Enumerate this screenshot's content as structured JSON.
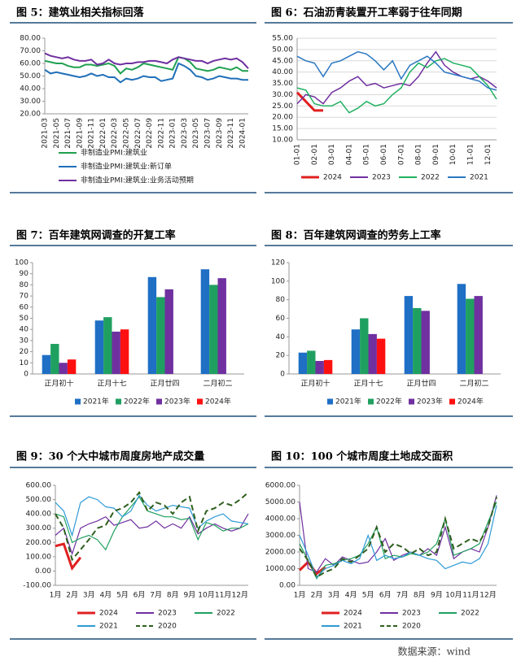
{
  "chart_data": [
    {
      "type": "line",
      "title": "图 5：建筑业相关指标回落",
      "categories": [
        "2021-03",
        null,
        "2021-05",
        null,
        "2021-07",
        null,
        "2021-09",
        null,
        "2021-11",
        null,
        "2022-01",
        null,
        "2022-03",
        null,
        "2022-05",
        null,
        "2022-07",
        null,
        "2022-09",
        null,
        "2022-11",
        null,
        "2023-01",
        null,
        "2023-03",
        null,
        "2023-05",
        null,
        "2023-07",
        null,
        "2023-09",
        null,
        "2023-11",
        null,
        "2024-01",
        null
      ],
      "ylim": [
        20,
        80
      ],
      "yticks": [
        {
          "value": 20,
          "label": "20.00"
        },
        {
          "value": 30,
          "label": "30.00"
        },
        {
          "value": 40,
          "label": "40.00"
        },
        {
          "value": 50,
          "label": "50.00"
        },
        {
          "value": 60,
          "label": "60.00"
        },
        {
          "value": 70,
          "label": "70.00"
        },
        {
          "value": 80,
          "label": "80.00"
        }
      ],
      "grid": false,
      "series": [
        {
          "name": "非制造业PMI:建筑业",
          "color": "#20a050",
          "line_width": 2,
          "values": [
            62,
            61,
            60,
            60,
            58,
            57,
            57,
            59,
            59,
            58,
            59,
            60,
            58,
            52,
            56,
            55,
            57,
            60,
            59,
            58,
            57,
            56,
            55,
            65,
            64,
            61,
            56,
            55,
            54,
            55,
            57,
            56,
            55,
            57,
            54,
            54
          ]
        },
        {
          "name": "非制造业PMI:建筑业:新订单",
          "color": "#1f6fb8",
          "line_width": 2,
          "values": [
            55,
            52,
            53,
            52,
            51,
            50,
            49,
            50,
            52,
            50,
            51,
            49,
            49,
            45,
            48,
            47,
            48,
            50,
            49,
            49,
            46,
            47,
            48,
            60,
            58,
            55,
            50,
            49,
            47,
            48,
            50,
            49,
            48,
            48,
            47,
            47
          ]
        },
        {
          "name": "非制造业PMI:建筑业:业务活动预期",
          "color": "#7030a0",
          "line_width": 2,
          "values": [
            68,
            66,
            65,
            64,
            65,
            63,
            62,
            62,
            63,
            59,
            60,
            63,
            60,
            59,
            60,
            60,
            61,
            61,
            62,
            62,
            61,
            60,
            63,
            65,
            64,
            63,
            62,
            62,
            60,
            62,
            63,
            64,
            63,
            64,
            61,
            56
          ]
        }
      ]
    },
    {
      "type": "line",
      "title": "图 6：石油沥青装置开工率弱于往年同期",
      "categories": [
        "01-01",
        null,
        "02-01",
        null,
        "03-01",
        null,
        "04-01",
        null,
        "05-01",
        null,
        "06-01",
        null,
        "07-01",
        null,
        "08-01",
        null,
        "09-01",
        null,
        "10-01",
        null,
        "11-01",
        null,
        "12-01",
        null
      ],
      "ylim": [
        10,
        55
      ],
      "yticks": [
        {
          "value": 10,
          "label": "10.00"
        },
        {
          "value": 15,
          "label": "15.00"
        },
        {
          "value": 20,
          "label": "20.00"
        },
        {
          "value": 25,
          "label": "25.00"
        },
        {
          "value": 30,
          "label": "30.00"
        },
        {
          "value": 35,
          "label": "35.00"
        },
        {
          "value": 40,
          "label": "40.00"
        },
        {
          "value": 45,
          "label": "45.00"
        },
        {
          "value": 50,
          "label": "50.00"
        },
        {
          "value": 55,
          "label": "55.00"
        }
      ],
      "grid": true,
      "series": [
        {
          "name": "2024",
          "color": "#e02020",
          "line_width": 3,
          "values": [
            31,
            27,
            23,
            23,
            null,
            null,
            null,
            null,
            null,
            null,
            null,
            null,
            null,
            null,
            null,
            null,
            null,
            null,
            null,
            null,
            null,
            null,
            null,
            null
          ]
        },
        {
          "name": "2023",
          "color": "#7030a0",
          "line_width": 1.5,
          "values": [
            26,
            30,
            29,
            26,
            31,
            33,
            36,
            38,
            34,
            35,
            33,
            34,
            35,
            34,
            38,
            44,
            49,
            43,
            40,
            38,
            37,
            38,
            36,
            33
          ]
        },
        {
          "name": "2022",
          "color": "#20b060",
          "line_width": 1.5,
          "values": [
            33,
            32,
            26,
            25,
            25,
            27,
            22,
            24,
            27,
            25,
            26,
            30,
            33,
            40,
            44,
            42,
            45,
            46,
            44,
            43,
            42,
            38,
            34,
            28
          ]
        },
        {
          "name": "2021",
          "color": "#2a78c2",
          "line_width": 1.5,
          "values": [
            47,
            45,
            44,
            38,
            44,
            45,
            47,
            49,
            48,
            45,
            41,
            45,
            37,
            43,
            45,
            47,
            44,
            40,
            39,
            38,
            37,
            36,
            33,
            32
          ]
        }
      ]
    },
    {
      "type": "bar",
      "title": "图 7：百年建筑网调查的开复工率",
      "categories": [
        "正月初十",
        "正月十七",
        "正月廿四",
        "二月初二"
      ],
      "ylim": [
        0,
        100
      ],
      "yticks": [
        0,
        10,
        20,
        30,
        40,
        50,
        60,
        70,
        80,
        90,
        100
      ],
      "grid": false,
      "series": [
        {
          "name": "2021年",
          "color": "#1f6fc5",
          "values": [
            17,
            48,
            87,
            94
          ]
        },
        {
          "name": "2022年",
          "color": "#20a060",
          "values": [
            27,
            51,
            69,
            80
          ]
        },
        {
          "name": "2023年",
          "color": "#7030a0",
          "values": [
            10,
            38,
            76,
            86
          ]
        },
        {
          "name": "2024年",
          "color": "#ff1010",
          "values": [
            13,
            40,
            null,
            null
          ]
        }
      ]
    },
    {
      "type": "bar",
      "title": "图 8：百年建筑网调查的劳务上工率",
      "categories": [
        "正月初十",
        "正月十七",
        "正月廿四",
        "二月初二"
      ],
      "ylim": [
        0,
        120
      ],
      "yticks": [
        0,
        20,
        40,
        60,
        80,
        100,
        120
      ],
      "grid": false,
      "series": [
        {
          "name": "2021年",
          "color": "#1f6fc5",
          "values": [
            23,
            48,
            84,
            97
          ]
        },
        {
          "name": "2022年",
          "color": "#20a060",
          "values": [
            25,
            60,
            71,
            81
          ]
        },
        {
          "name": "2023年",
          "color": "#7030a0",
          "values": [
            14,
            43,
            68,
            84
          ]
        },
        {
          "name": "2024年",
          "color": "#ff1010",
          "values": [
            15,
            38,
            null,
            null
          ]
        }
      ]
    },
    {
      "type": "line",
      "title": "图 9：30 个大中城市周度房地产成交量",
      "categories": [
        "1月",
        null,
        "2月",
        null,
        "3月",
        null,
        "4月",
        null,
        "5月",
        null,
        "6月",
        null,
        "7月",
        null,
        "8月",
        null,
        "9月",
        null,
        "10月",
        null,
        "11月",
        null,
        "12月",
        null
      ],
      "ylim": [
        -100,
        600
      ],
      "yticks": [
        {
          "value": -100,
          "label": "-100.00"
        },
        {
          "value": 0,
          "label": "0.00"
        },
        {
          "value": 100,
          "label": "100.00"
        },
        {
          "value": 200,
          "label": "200.00"
        },
        {
          "value": 300,
          "label": "300.00"
        },
        {
          "value": 400,
          "label": "400.00"
        },
        {
          "value": 500,
          "label": "500.00"
        },
        {
          "value": 600,
          "label": "600.00"
        }
      ],
      "grid": false,
      "series": [
        {
          "name": "2024",
          "color": "#e02020",
          "line_width": 3,
          "values": [
            175,
            190,
            20,
            95,
            null,
            null,
            null,
            null,
            null,
            null,
            null,
            null,
            null,
            null,
            null,
            null,
            null,
            null,
            null,
            null,
            null,
            null,
            null,
            null
          ]
        },
        {
          "name": "2023",
          "color": "#7030a0",
          "line_width": 1.2,
          "values": [
            250,
            300,
            120,
            300,
            330,
            350,
            380,
            320,
            340,
            360,
            300,
            310,
            350,
            300,
            330,
            300,
            380,
            260,
            300,
            330,
            300,
            280,
            300,
            400
          ]
        },
        {
          "name": "2022",
          "color": "#20a060",
          "line_width": 1.2,
          "values": [
            400,
            380,
            200,
            230,
            250,
            220,
            150,
            280,
            380,
            450,
            520,
            420,
            400,
            380,
            380,
            360,
            370,
            220,
            340,
            320,
            280,
            300,
            300,
            330
          ]
        },
        {
          "name": "2021",
          "color": "#2e9bd6",
          "line_width": 1.2,
          "values": [
            480,
            420,
            250,
            480,
            520,
            500,
            450,
            440,
            380,
            420,
            530,
            460,
            420,
            440,
            460,
            450,
            440,
            300,
            350,
            380,
            400,
            350,
            340,
            330
          ]
        },
        {
          "name": "2020",
          "color": "#2f5f1f",
          "line_width": 2,
          "style": "dashed",
          "values": [
            400,
            300,
            80,
            150,
            220,
            300,
            320,
            420,
            440,
            480,
            550,
            420,
            480,
            460,
            400,
            480,
            520,
            280,
            420,
            440,
            480,
            460,
            500,
            550
          ]
        }
      ]
    },
    {
      "type": "line",
      "title": "图 10：100 个城市周度土地成交面积",
      "categories": [
        "1月",
        null,
        "2月",
        null,
        "3月",
        null,
        "4月",
        null,
        "5月",
        null,
        "6月",
        null,
        "7月",
        null,
        "8月",
        null,
        "9月",
        null,
        "10月",
        null,
        "11月",
        null,
        "12月",
        null
      ],
      "ylim": [
        0,
        6000
      ],
      "yticks": [
        {
          "value": 0,
          "label": "0.00"
        },
        {
          "value": 1000,
          "label": "1000.00"
        },
        {
          "value": 2000,
          "label": "2000.00"
        },
        {
          "value": 3000,
          "label": "3000.00"
        },
        {
          "value": 4000,
          "label": "4000.00"
        },
        {
          "value": 5000,
          "label": "5000.00"
        },
        {
          "value": 6000,
          "label": "6000.00"
        }
      ],
      "grid": false,
      "series": [
        {
          "name": "2024",
          "color": "#e02020",
          "line_width": 3,
          "values": [
            900,
            1400,
            700,
            1100,
            null,
            null,
            null,
            null,
            null,
            null,
            null,
            null,
            null,
            null,
            null,
            null,
            null,
            null,
            null,
            null,
            null,
            null,
            null,
            null
          ]
        },
        {
          "name": "2023",
          "color": "#7030a0",
          "line_width": 1.2,
          "values": [
            5000,
            1000,
            800,
            1600,
            1200,
            1700,
            1500,
            1300,
            1400,
            2000,
            2800,
            1500,
            1800,
            2000,
            1800,
            2200,
            1800,
            3500,
            1600,
            2000,
            2200,
            2000,
            3500,
            5400
          ]
        },
        {
          "name": "2022",
          "color": "#20a060",
          "line_width": 1.2,
          "values": [
            2500,
            1500,
            400,
            1200,
            1300,
            1500,
            1600,
            1800,
            2500,
            3500,
            1600,
            1800,
            1700,
            1900,
            1800,
            2000,
            2500,
            4000,
            1800,
            2000,
            2200,
            2500,
            3800,
            5000
          ]
        },
        {
          "name": "2021",
          "color": "#2e9bd6",
          "line_width": 1.2,
          "values": [
            3000,
            1800,
            500,
            1000,
            1200,
            1500,
            1300,
            1600,
            3000,
            1500,
            1800,
            1600,
            1700,
            2000,
            1800,
            1600,
            1500,
            1000,
            1200,
            1400,
            1300,
            1600,
            2500,
            4800
          ]
        },
        {
          "name": "2020",
          "color": "#2f5f1f",
          "line_width": 2,
          "style": "dashed",
          "values": [
            2200,
            1500,
            500,
            800,
            1000,
            1600,
            1400,
            1800,
            2200,
            3500,
            2000,
            2500,
            2300,
            1900,
            2200,
            1800,
            2000,
            4000,
            2200,
            2500,
            2800,
            2600,
            3500,
            5300
          ]
        }
      ]
    }
  ],
  "source": "数据来源：wind"
}
